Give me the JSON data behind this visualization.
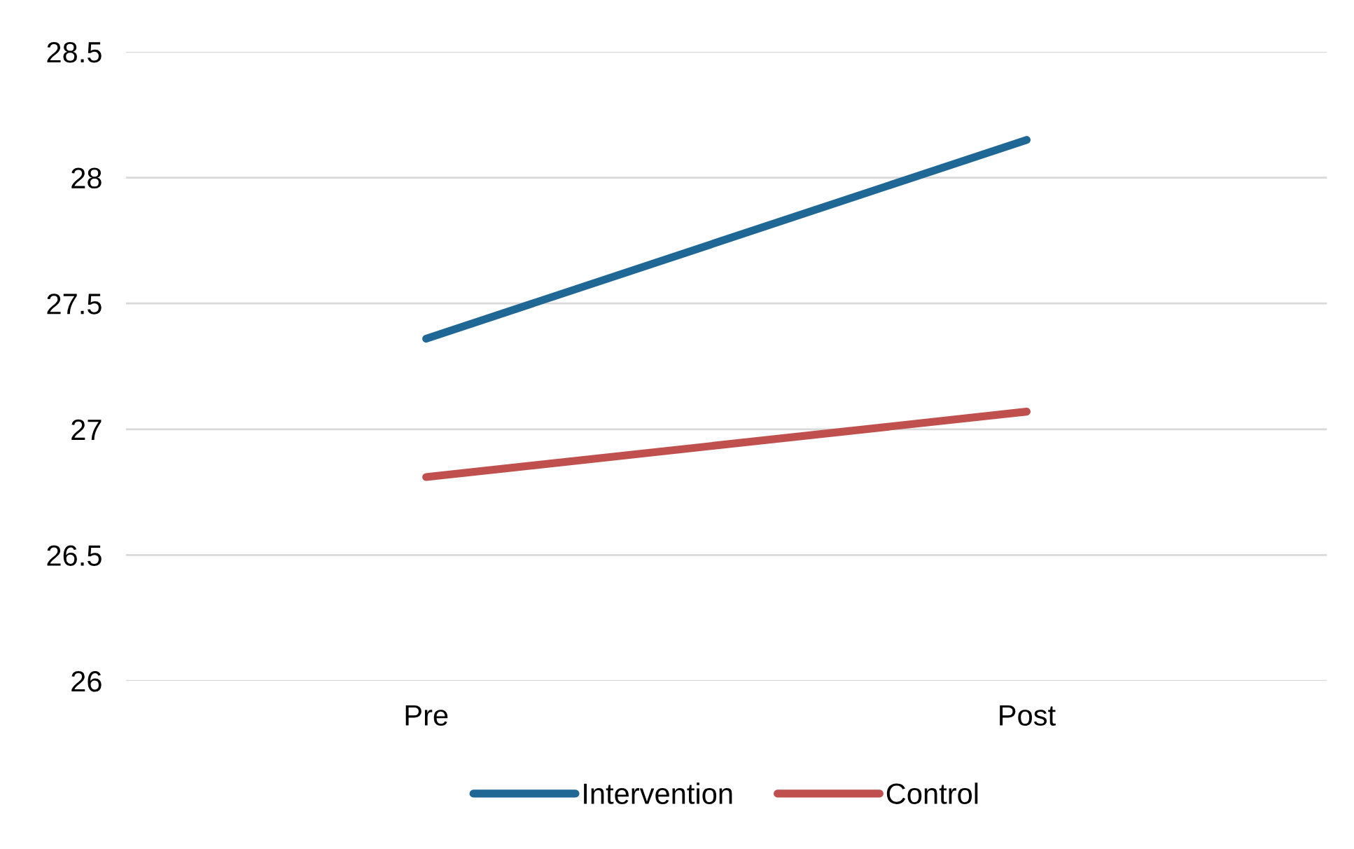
{
  "chart_data": {
    "type": "line",
    "categories": [
      "Pre",
      "Post"
    ],
    "series": [
      {
        "name": "Intervention",
        "color": "#1f6896",
        "values": [
          27.36,
          28.15
        ]
      },
      {
        "name": "Control",
        "color": "#c0504d",
        "values": [
          26.81,
          27.07
        ]
      }
    ],
    "ylim": [
      26,
      28.5
    ],
    "yticks": [
      26,
      26.5,
      27,
      27.5,
      28,
      28.5
    ],
    "grid": "y",
    "legend": "bottom",
    "marker": "none",
    "line_style": "solid"
  }
}
